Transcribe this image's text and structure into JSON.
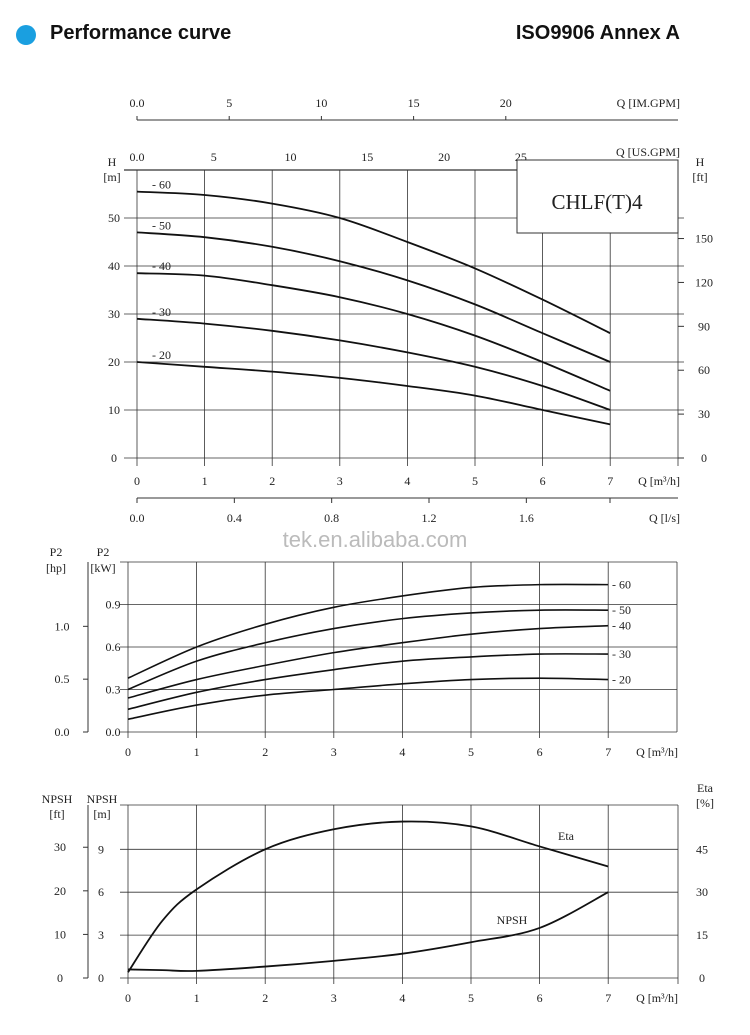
{
  "header": {
    "title": "Performance curve",
    "standard": "ISO9906 Annex A",
    "accent_color": "#1a9fe0",
    "bullet_icon": "filled-circle"
  },
  "watermark": "tek.en.alibaba.com",
  "chart_data": [
    {
      "type": "line",
      "title": "CHLF(T)4",
      "xlabel": "Q [m³/h]",
      "ylabel_left": "H [m]",
      "ylabel_right": "H [ft]",
      "xlim": [
        0,
        7
      ],
      "ylim": [
        0,
        60
      ],
      "grid": true,
      "x_ticks": [
        0,
        1,
        2,
        3,
        4,
        5,
        6,
        7
      ],
      "y_ticks_left": [
        0,
        10,
        20,
        30,
        40,
        50
      ],
      "y_ticks_right": [
        0,
        30,
        60,
        90,
        120,
        150
      ],
      "secondary_x_axes": [
        {
          "label": "Q [IM.GPM]",
          "ticks": [
            "0.0",
            "5",
            "10",
            "15",
            "20"
          ],
          "values": [
            0,
            5,
            10,
            15,
            20
          ],
          "per_m3h": 3.666
        },
        {
          "label": "Q [US.GPM]",
          "ticks": [
            "0.0",
            "5",
            "10",
            "15",
            "20",
            "25"
          ],
          "values": [
            0,
            5,
            10,
            15,
            20,
            25
          ],
          "per_m3h": 4.403
        },
        {
          "label": "Q [l/s]",
          "ticks": [
            "0.0",
            "0.4",
            "0.8",
            "1.2",
            "1.6"
          ],
          "values": [
            0,
            0.4,
            0.8,
            1.2,
            1.6
          ],
          "per_m3h": 0.2778
        }
      ],
      "x": [
        0,
        1,
        2,
        3,
        4,
        5,
        6,
        7
      ],
      "series": [
        {
          "name": "60",
          "values": [
            55.5,
            54.8,
            53,
            50,
            45,
            39.5,
            33,
            26
          ]
        },
        {
          "name": "50",
          "values": [
            47,
            46,
            44,
            41,
            37,
            32,
            26,
            20
          ]
        },
        {
          "name": "40",
          "values": [
            38.5,
            38,
            36,
            33.5,
            30,
            25.5,
            20,
            14
          ]
        },
        {
          "name": "30",
          "values": [
            29,
            28,
            26.5,
            24.5,
            22,
            19,
            15,
            10
          ]
        },
        {
          "name": "20",
          "values": [
            20,
            19,
            18,
            16.7,
            15,
            13,
            10,
            7
          ]
        }
      ]
    },
    {
      "type": "line",
      "xlabel": "Q [m³/h]",
      "ylabel_left_outer": "P2 [hp]",
      "ylabel_left": "P2 [kW]",
      "xlim": [
        0,
        7
      ],
      "ylim": [
        0,
        1.2
      ],
      "grid": true,
      "x_ticks": [
        0,
        1,
        2,
        3,
        4,
        5,
        6,
        7
      ],
      "y_ticks_kw": [
        "0.0",
        "0.3",
        "0.6",
        "0.9"
      ],
      "y_ticks_hp": [
        "0.0",
        "0.5",
        "1.0"
      ],
      "x": [
        0,
        1,
        2,
        3,
        4,
        5,
        6,
        7
      ],
      "series": [
        {
          "name": "60",
          "values": [
            0.38,
            0.6,
            0.76,
            0.88,
            0.96,
            1.02,
            1.04,
            1.04
          ]
        },
        {
          "name": "50",
          "values": [
            0.3,
            0.5,
            0.63,
            0.73,
            0.8,
            0.84,
            0.86,
            0.86
          ]
        },
        {
          "name": "40",
          "values": [
            0.24,
            0.37,
            0.47,
            0.56,
            0.63,
            0.69,
            0.73,
            0.75
          ]
        },
        {
          "name": "30",
          "values": [
            0.16,
            0.28,
            0.37,
            0.44,
            0.5,
            0.53,
            0.55,
            0.55
          ]
        },
        {
          "name": "20",
          "values": [
            0.09,
            0.19,
            0.26,
            0.3,
            0.34,
            0.37,
            0.38,
            0.37
          ]
        }
      ]
    },
    {
      "type": "line",
      "xlabel": "Q [m³/h]",
      "ylabel_left_outer": "NPSH [ft]",
      "ylabel_left": "NPSH [m]",
      "ylabel_right": "Eta [%]",
      "xlim": [
        0,
        7
      ],
      "ylim": [
        0,
        12
      ],
      "ylim_right": [
        0,
        60
      ],
      "grid": true,
      "x_ticks": [
        0,
        1,
        2,
        3,
        4,
        5,
        6,
        7
      ],
      "y_ticks_m": [
        "0",
        "3",
        "6",
        "9"
      ],
      "y_ticks_ft": [
        "0",
        "10",
        "20",
        "30"
      ],
      "y_ticks_eta": [
        "0",
        "15",
        "30",
        "45"
      ],
      "x": [
        0,
        0.5,
        1,
        2,
        3,
        4,
        5,
        6,
        7
      ],
      "series": [
        {
          "name": "Eta",
          "axis": "right",
          "values": [
            2,
            20,
            31,
            45,
            52,
            54.7,
            53,
            46,
            39
          ]
        },
        {
          "name": "NPSH",
          "axis": "left",
          "values": [
            0.6,
            0.55,
            0.5,
            0.8,
            1.2,
            1.7,
            2.5,
            3.5,
            6
          ]
        }
      ]
    }
  ]
}
